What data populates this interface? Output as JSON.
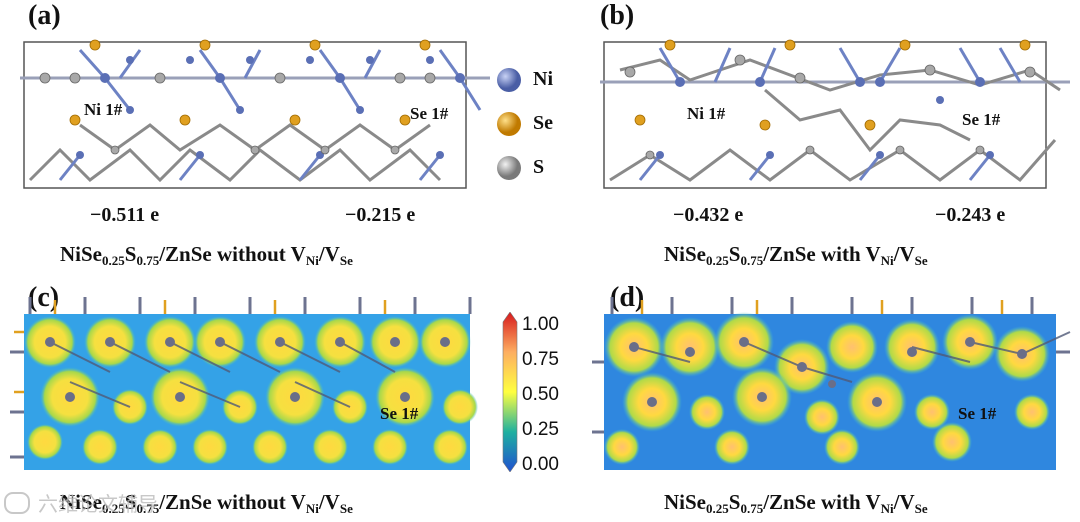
{
  "panels": {
    "a": {
      "label": "(a)",
      "atom_label_1": "Ni 1#",
      "atom_label_2": "Se 1#",
      "charge_1": "−0.511 e",
      "charge_2": "−0.215 e"
    },
    "b": {
      "label": "(b)",
      "atom_label_1": "Ni 1#",
      "atom_label_2": "Se 1#",
      "charge_1": "−0.432 e",
      "charge_2": "−0.243 e"
    },
    "c": {
      "label": "(c)",
      "atom_label": "Se 1#"
    },
    "d": {
      "label": "(d)",
      "atom_label": "Se 1#"
    }
  },
  "captions": {
    "top_left": {
      "pre": "NiSe",
      "sub1": "0.25",
      "mid": "S",
      "sub2": "0.75",
      "post": "/ZnSe without V",
      "sub3": "Ni",
      "slash": "/V",
      "sub4": "Se"
    },
    "top_right": {
      "pre": "NiSe",
      "sub1": "0.25",
      "mid": "S",
      "sub2": "0.75",
      "post": "/ZnSe with V",
      "sub3": "Ni",
      "slash": "/V",
      "sub4": "Se"
    },
    "bottom_left": {
      "pre": "NiSe",
      "sub1": "0.25",
      "mid": "S",
      "sub2": "0.75",
      "post": "/ZnSe without V",
      "sub3": "Ni",
      "slash": "/V",
      "sub4": "Se"
    },
    "bottom_right": {
      "pre": "NiSe",
      "sub1": "0.25",
      "mid": "S",
      "sub2": "0.75",
      "post": "/ZnSe with V",
      "sub3": "Ni",
      "slash": "/V",
      "sub4": "Se"
    }
  },
  "legend": {
    "items": [
      {
        "label": "Ni",
        "color": "#5a6fb5"
      },
      {
        "label": "Se",
        "color": "#e0a020"
      },
      {
        "label": "S",
        "color": "#b8b8b8"
      }
    ]
  },
  "colorbar": {
    "ticks": [
      "1.00",
      "0.75",
      "0.50",
      "0.25",
      "0.00"
    ],
    "colors": [
      "#d7191c",
      "#fdae61",
      "#ffff40",
      "#1fb0a0",
      "#2050d0"
    ]
  },
  "watermark": {
    "text": "六维论文辅导"
  }
}
